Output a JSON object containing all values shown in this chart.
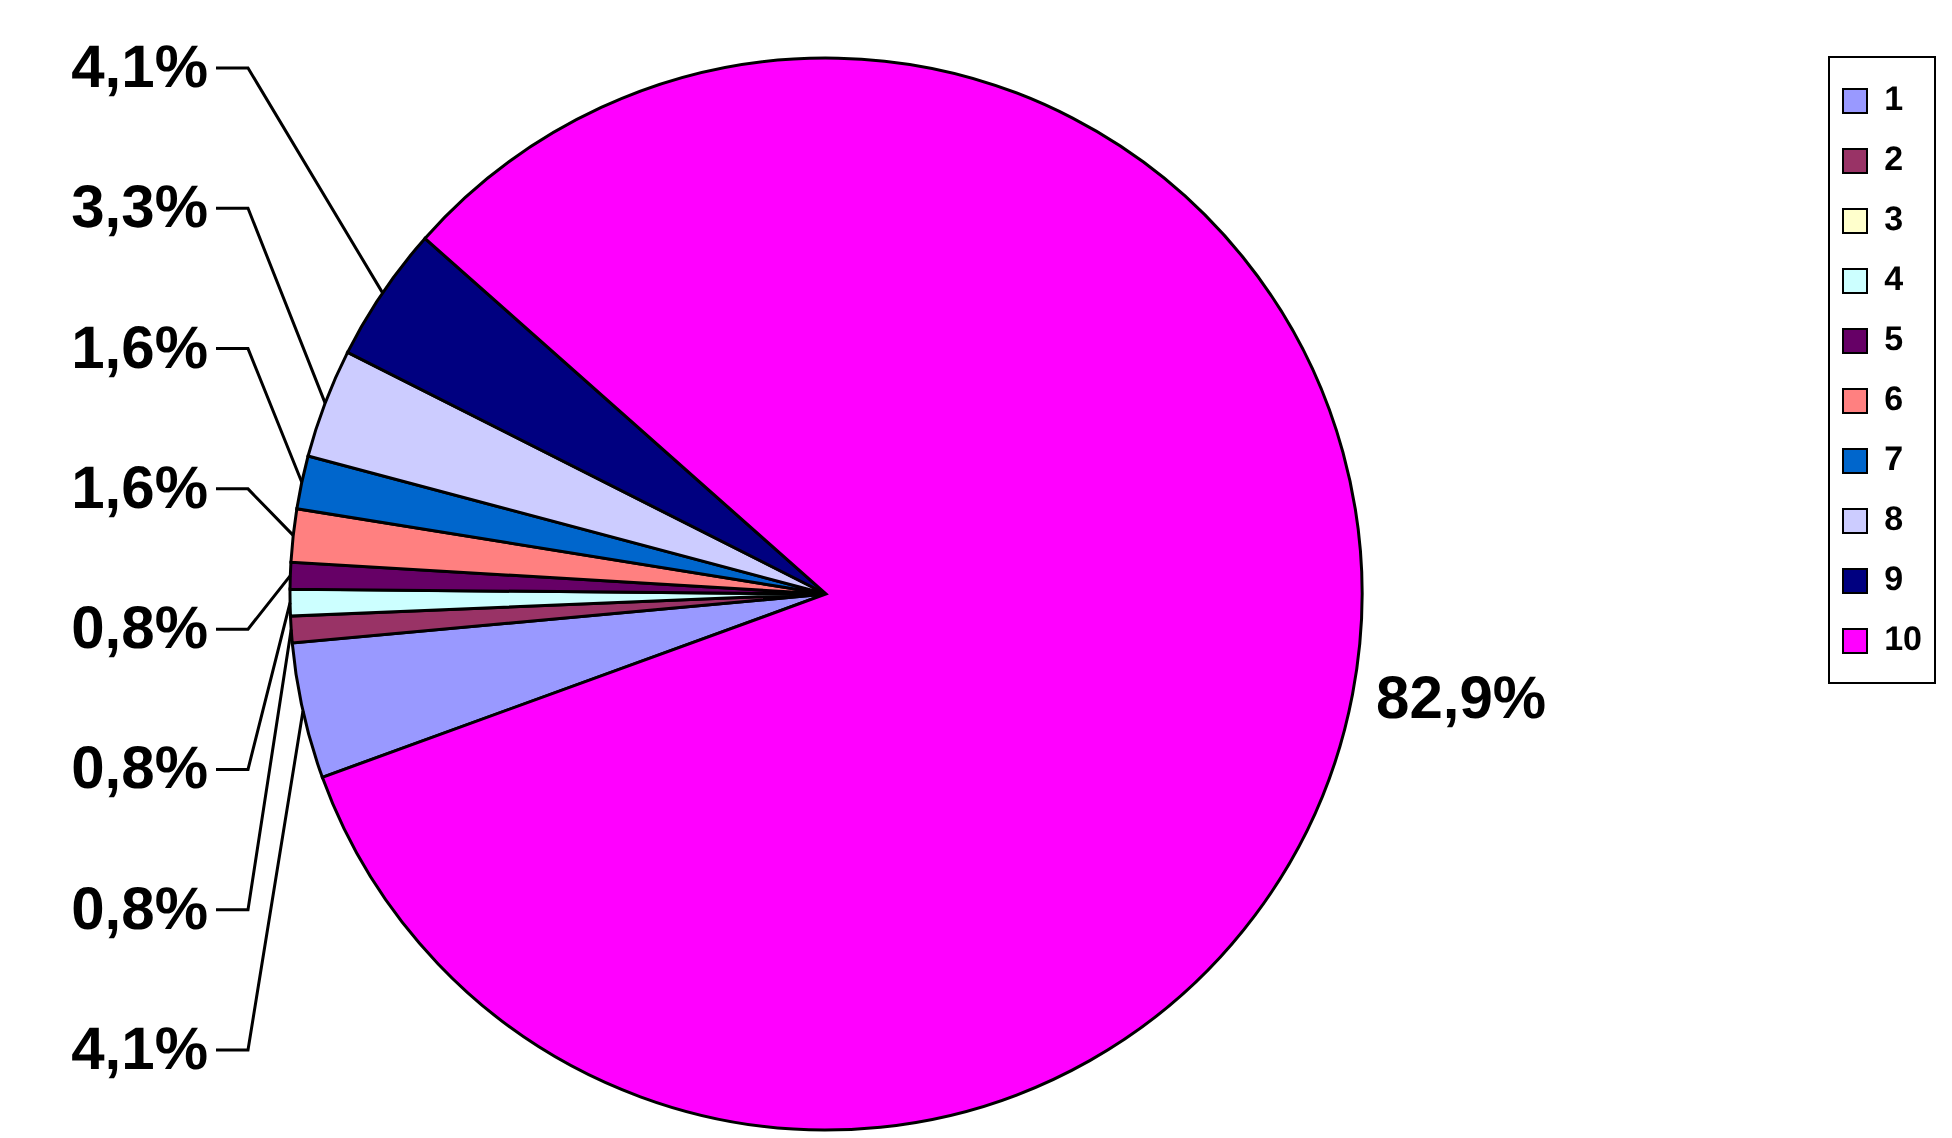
{
  "chart_data": {
    "type": "pie",
    "categories": [
      "1",
      "2",
      "3",
      "4",
      "5",
      "6",
      "7",
      "8",
      "9",
      "10"
    ],
    "values": [
      4.1,
      0.8,
      0,
      0.8,
      0.8,
      1.6,
      1.6,
      3.3,
      4.1,
      82.9
    ],
    "colors": [
      "#9999ff",
      "#993366",
      "#ffffcc",
      "#ccffff",
      "#660066",
      "#ff8080",
      "#0066cc",
      "#ccccff",
      "#000080",
      "#ff00ff"
    ],
    "value_labels": [
      "4,1%",
      "0,8%",
      null,
      "0,8%",
      "0,8%",
      "1,6%",
      "1,6%",
      "3,3%",
      "4,1%",
      "82,9%"
    ],
    "legend": "right"
  }
}
